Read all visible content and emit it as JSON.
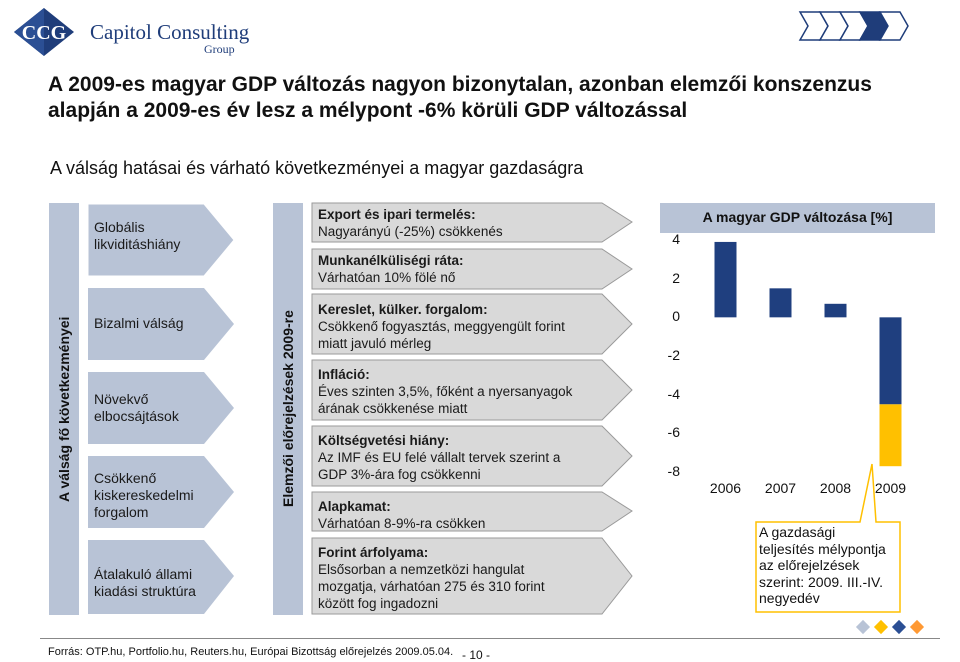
{
  "logo": {
    "monogram": "CCG",
    "name": "Capitol Consulting",
    "group": "Group"
  },
  "title": "A 2009-es magyar GDP változás nagyon bizonytalan, azonban elemzői konszenzus alapján a 2009-es év lesz a mélypont -6% körüli GDP változással",
  "subtitle": "A válság hatásai és várható következményei a magyar gazdaságra",
  "left_band_label": "A válság fő következményei",
  "middle_band_label": "Elemzői előrejelzések 2009-re",
  "consequences": [
    {
      "line1": "Globális",
      "line2": "likviditáshiány",
      "line3": ""
    },
    {
      "line1": "Bizalmi válság",
      "line2": "",
      "line3": ""
    },
    {
      "line1": "Növekvő",
      "line2": "elbocsájtások",
      "line3": ""
    },
    {
      "line1": "Csökkenő",
      "line2": "kiskereskedelmi",
      "line3": "forgalom"
    },
    {
      "line1": "Átalakuló állami",
      "line2": "kiadási struktúra",
      "line3": ""
    }
  ],
  "forecasts": [
    {
      "heading": "Export és ipari termelés:",
      "text1": "Nagyarányú (-25%) csökkenés",
      "text2": ""
    },
    {
      "heading": "Munkanélküliségi ráta:",
      "text1": "Várhatóan 10% fölé nő",
      "text2": ""
    },
    {
      "heading": "Kereslet, külker. forgalom:",
      "text1": "Csökkenő fogyasztás, meggyengült forint",
      "text2": "miatt javuló mérleg"
    },
    {
      "heading": "Infláció:",
      "text1": "Éves szinten 3,5%, főként a nyersanyagok",
      "text2": "árának csökkenése miatt"
    },
    {
      "heading": "Költségvetési hiány:",
      "text1": "Az IMF és EU felé vállalt  tervek szerint a",
      "text2": "GDP 3%-ára fog csökkenni"
    },
    {
      "heading": "Alapkamat:",
      "text1": "Várhatóan 8-9%-ra csökken",
      "text2": ""
    },
    {
      "heading": "Forint árfolyama:",
      "text1": "Elsősorban a nemzetközi hangulat",
      "text2": "mozgatja, várhatóan 275 és 310 forint",
      "text3": "között fog ingadozni"
    }
  ],
  "chart_data": {
    "type": "bar",
    "title": "A magyar GDP változása [%]",
    "categories": [
      "2006",
      "2007",
      "2008",
      "2009"
    ],
    "values": [
      3.9,
      1.5,
      0.7,
      -4.5
    ],
    "uncertainty_2009": -3.2,
    "ylim": [
      -8,
      4
    ],
    "yticks": [
      "4",
      "2",
      "0",
      "-2",
      "-4",
      "-6",
      "-8"
    ],
    "colors": {
      "bar": "#1f3f7f",
      "uncertainty": "#ffc000"
    }
  },
  "callout": {
    "line1": "A gazdasági",
    "line2": "teljesítés mélypontja",
    "line3": "az előrejelzések",
    "line4": "szerint: 2009. III.-IV.",
    "line5": "negyedév"
  },
  "footer": "Forrás: OTP.hu, Portfolio.hu, Reuters.hu, Európai Bizottság előrejelzés 2009.05.04.",
  "page_number": "- 10 -"
}
